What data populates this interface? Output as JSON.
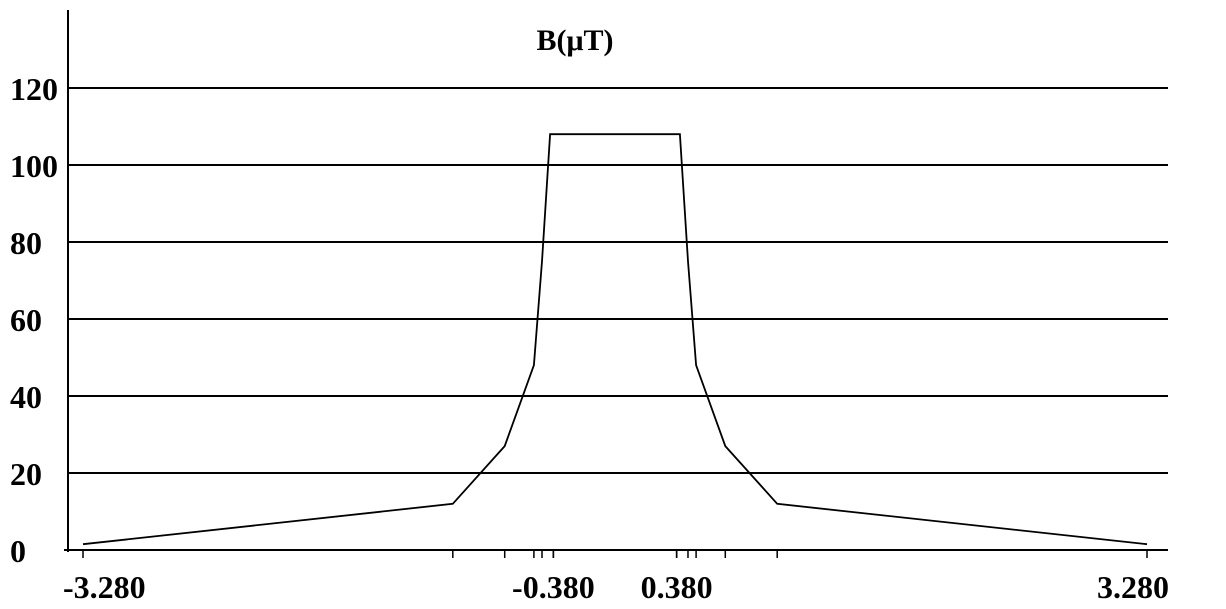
{
  "chart_data": {
    "type": "line",
    "title": "B(μT)",
    "xlabel": "",
    "ylabel": "",
    "xlim": [
      -3.28,
      3.28
    ],
    "ylim": [
      0,
      120
    ],
    "yticks": [
      0,
      20,
      40,
      60,
      80,
      100,
      120
    ],
    "ytick_labels": [
      "0",
      "20",
      "40",
      "60",
      "80",
      "100",
      "120"
    ],
    "xtick_values": [
      -3.28,
      -0.38,
      0.38,
      3.28
    ],
    "xtick_labels": [
      "-3.280",
      "-0.380",
      "0.380",
      "3.280"
    ],
    "minor_xticks": [
      -1.0,
      -0.68,
      -0.5,
      -0.45,
      -0.38,
      0.38,
      0.45,
      0.5,
      0.68,
      1.0
    ],
    "grid": "horizontal",
    "series": [
      {
        "x": [
          -3.28,
          -1.0,
          -0.68,
          -0.5,
          -0.45,
          -0.4,
          0.4,
          0.45,
          0.5,
          0.68,
          1.0,
          3.28
        ],
        "y": [
          1.5,
          12,
          27,
          48,
          75,
          108,
          108,
          75,
          48,
          27,
          12,
          1.5
        ]
      }
    ]
  }
}
